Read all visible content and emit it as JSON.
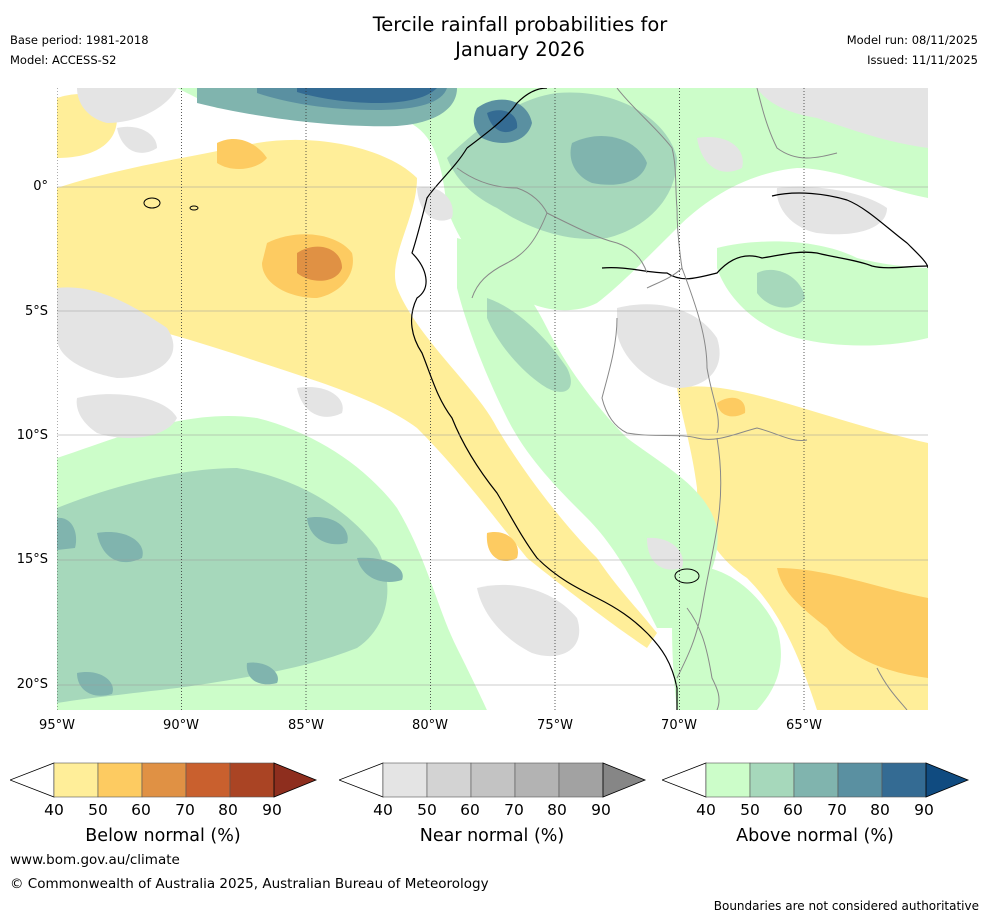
{
  "header": {
    "title_line1": "Tercile rainfall probabilities for",
    "title_line2": "January 2026",
    "base_period": "Base period: 1981-2018",
    "model": "Model: ACCESS-S2",
    "model_run": "Model run: 08/11/2025",
    "issued": "Issued: 11/11/2025"
  },
  "axes": {
    "lat_labels": [
      "0°",
      "5°S",
      "10°S",
      "15°S",
      "20°S"
    ],
    "lon_labels": [
      "95°W",
      "90°W",
      "85°W",
      "80°W",
      "75°W",
      "70°W",
      "65°W"
    ]
  },
  "colorbars": [
    {
      "title": "Below normal (%)",
      "ticks": [
        "40",
        "50",
        "60",
        "70",
        "80",
        "90"
      ],
      "colors": [
        "#ffee99",
        "#fdcb61",
        "#e09144",
        "#c9602e",
        "#aa4424",
        "#8e2e1e"
      ]
    },
    {
      "title": "Near normal (%)",
      "ticks": [
        "40",
        "50",
        "60",
        "70",
        "80",
        "90"
      ],
      "colors": [
        "#e4e4e4",
        "#d3d3d3",
        "#c3c3c3",
        "#b3b3b3",
        "#a2a2a2",
        "#868686"
      ]
    },
    {
      "title": "Above normal (%)",
      "ticks": [
        "40",
        "50",
        "60",
        "70",
        "80",
        "90"
      ],
      "colors": [
        "#ccfdc9",
        "#a6d8bb",
        "#80b4ae",
        "#5a90a1",
        "#346b93",
        "#104b80"
      ]
    }
  ],
  "footer": {
    "website": "www.bom.gov.au/climate",
    "copyright": "© Commonwealth of Australia 2025, Australian Bureau of Meteorology",
    "disclaimer": "Boundaries are not considered authoritative"
  }
}
